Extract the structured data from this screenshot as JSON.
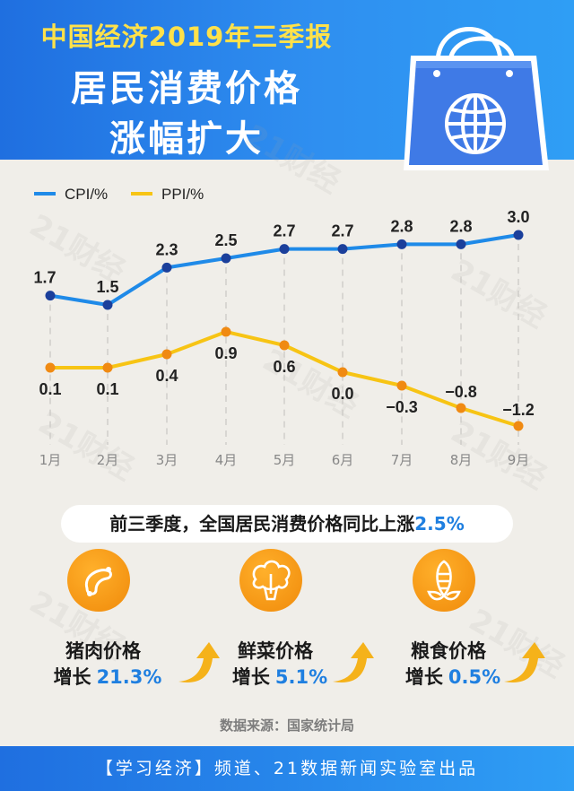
{
  "header": {
    "line1": "中国经济2019年三季报",
    "line2": "居民消费价格",
    "line3": "涨幅扩大"
  },
  "watermark": "21财经",
  "chart_data": {
    "type": "line",
    "categories": [
      "1月",
      "2月",
      "3月",
      "4月",
      "5月",
      "6月",
      "7月",
      "8月",
      "9月"
    ],
    "series": [
      {
        "name": "CPI/%",
        "color": "#1f8ae8",
        "marker": "#1b3f9b",
        "values": [
          1.7,
          1.5,
          2.3,
          2.5,
          2.7,
          2.7,
          2.8,
          2.8,
          3.0
        ],
        "labels": [
          "1.7",
          "1.5",
          "2.3",
          "2.5",
          "2.7",
          "2.7",
          "2.8",
          "2.8",
          "3.0"
        ]
      },
      {
        "name": "PPI/%",
        "color": "#f7c414",
        "marker": "#f08a12",
        "values": [
          0.1,
          0.1,
          0.4,
          0.9,
          0.6,
          0.0,
          -0.3,
          -0.8,
          -1.2
        ],
        "labels": [
          "0.1",
          "0.1",
          "0.4",
          "0.9",
          "0.6",
          "0.0",
          "−0.3",
          "−0.8",
          "−1.2"
        ]
      }
    ],
    "legend_position": "top-left",
    "grid": "vertical dashed",
    "legend": [
      "CPI/%",
      "PPI/%"
    ]
  },
  "summary": {
    "text": "前三季度，全国居民消费价格同比上涨",
    "value": "2.5%"
  },
  "items": [
    {
      "name": "猪肉价格",
      "grow_label": "增长",
      "value": "21.3%",
      "icon": "sausage-icon"
    },
    {
      "name": "鲜菜价格",
      "grow_label": "增长",
      "value": "5.1%",
      "icon": "cauliflower-icon"
    },
    {
      "name": "粮食价格",
      "grow_label": "增长",
      "value": "0.5%",
      "icon": "corn-icon"
    }
  ],
  "source": "数据来源：国家统计局",
  "footer": "【学习经济】频道、21数据新闻实验室出品",
  "colors": {
    "brand_blue": "#1f7fe0",
    "accent_orange": "#f59a12",
    "title_yellow": "#ffe14a"
  }
}
